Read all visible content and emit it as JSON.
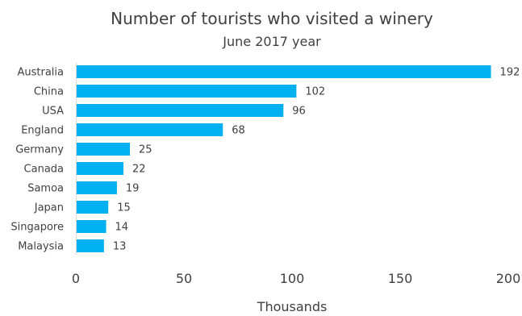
{
  "chart_data": {
    "type": "bar",
    "orientation": "horizontal",
    "title": "Number of tourists who visited a winery",
    "subtitle": "June 2017 year",
    "xlabel": "Thousands",
    "ylabel": "",
    "categories": [
      "Australia",
      "China",
      "USA",
      "England",
      "Germany",
      "Canada",
      "Samoa",
      "Japan",
      "Singapore",
      "Malaysia"
    ],
    "values": [
      192,
      102,
      96,
      68,
      25,
      22,
      19,
      15,
      14,
      13
    ],
    "value_labels": [
      "192",
      "102",
      "96",
      "68",
      "25",
      "22",
      "19",
      "15",
      "14",
      "13"
    ],
    "xlim": [
      0,
      200
    ],
    "xticks": [
      0,
      50,
      100,
      150,
      200
    ],
    "xtick_labels": [
      "0",
      "50",
      "100",
      "150",
      "200"
    ],
    "grid": false,
    "legend": "none",
    "colors": {
      "bar": "#00b0f0",
      "text": "#404040",
      "axis": "#d9d9d9"
    }
  }
}
